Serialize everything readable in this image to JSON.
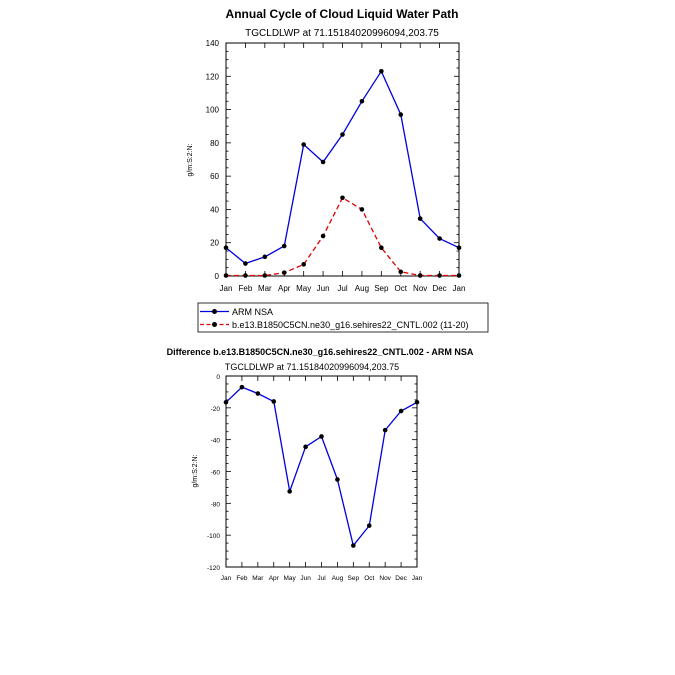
{
  "chart_data": [
    {
      "type": "line",
      "title": "Annual Cycle of Cloud Liquid Water Path",
      "subtitle": "TGCLDLWP at 71.15184020996094,203.75",
      "xlabel": "",
      "ylabel": "g/m:S:2:N:",
      "categories": [
        "Jan",
        "Feb",
        "Mar",
        "Apr",
        "May",
        "Jun",
        "Jul",
        "Aug",
        "Sep",
        "Oct",
        "Nov",
        "Dec",
        "Jan"
      ],
      "ylim": [
        0,
        140
      ],
      "yticks": [
        0,
        20,
        40,
        60,
        80,
        100,
        120,
        140
      ],
      "series": [
        {
          "name": "ARM NSA",
          "color": "#0000e0",
          "style": "solid",
          "values": [
            17,
            7.5,
            11.5,
            18,
            79,
            68.5,
            85,
            105,
            123,
            97,
            34.5,
            22.5,
            17
          ]
        },
        {
          "name": "b.e13.B1850C5CN.ne30_g16.sehires22_CNTL.002 (11-20)",
          "color": "#e00000",
          "style": "dashed",
          "values": [
            0.3,
            0.3,
            0.3,
            2,
            7,
            24,
            47,
            40,
            17,
            2.5,
            0.3,
            0.3,
            0.3
          ]
        }
      ]
    },
    {
      "type": "line",
      "title": "Difference b.e13.B1850C5CN.ne30_g16.sehires22_CNTL.002 - ARM NSA",
      "subtitle": "TGCLDLWP at 71.15184020996094,203.75",
      "xlabel": "",
      "ylabel": "g/m:S:2:N:",
      "categories": [
        "Jan",
        "Feb",
        "Mar",
        "Apr",
        "May",
        "Jun",
        "Jul",
        "Aug",
        "Sep",
        "Oct",
        "Nov",
        "Dec",
        "Jan"
      ],
      "ylim": [
        -120,
        0
      ],
      "yticks": [
        0,
        -20,
        -40,
        -60,
        -80,
        -100,
        -120
      ],
      "series": [
        {
          "name": "Difference",
          "color": "#0000e0",
          "style": "solid",
          "values": [
            -16.5,
            -7,
            -11,
            -16,
            -72.5,
            -44.5,
            -38,
            -65,
            -106.5,
            -94,
            -34,
            -22,
            -16.5
          ]
        }
      ]
    }
  ]
}
